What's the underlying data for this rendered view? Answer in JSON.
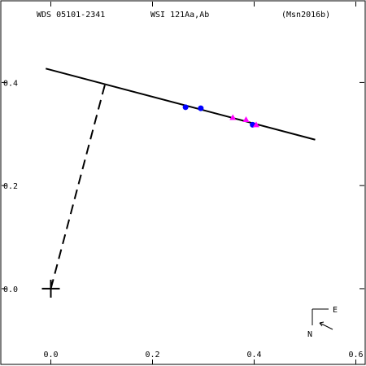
{
  "header": {
    "left": "WDS 05101-2341",
    "center": "WSI 121Aa,Ab",
    "right": "(Msn2016b)"
  },
  "chart_data": {
    "type": "scatter",
    "title": "",
    "xlabel": "",
    "ylabel": "",
    "xlim": [
      -0.1,
      0.62
    ],
    "ylim": [
      -0.15,
      0.56
    ],
    "x_ticks": [
      0.0,
      0.2,
      0.4,
      0.6
    ],
    "x_tick_labels": [
      "0.0",
      "0.2",
      "0.4",
      "0.6"
    ],
    "y_ticks": [
      0.0,
      0.2,
      0.4
    ],
    "y_tick_labels": [
      "0.0",
      "0.2",
      "0.4"
    ],
    "grid": false,
    "orbit_line": {
      "x": [
        -0.01,
        0.52
      ],
      "y": [
        0.427,
        0.289
      ]
    },
    "primary": {
      "x": 0.0,
      "y": 0.0
    },
    "connector": {
      "from": [
        0.0,
        0.0
      ],
      "to": [
        0.107,
        0.398
      ]
    },
    "series": [
      {
        "marker": "circle",
        "color": "#0000ff",
        "x": [
          0.265,
          0.295,
          0.397
        ],
        "y": [
          0.352,
          0.35,
          0.318
        ]
      },
      {
        "marker": "triangle",
        "color": "#ff00ff",
        "x": [
          0.358,
          0.384,
          0.404
        ],
        "y": [
          0.332,
          0.328,
          0.318
        ]
      }
    ],
    "orientation": {
      "east": "E",
      "north": "N"
    }
  }
}
